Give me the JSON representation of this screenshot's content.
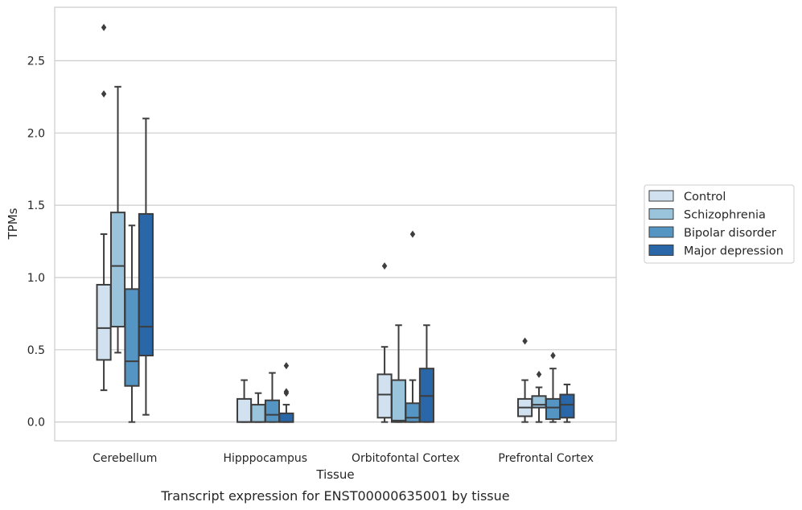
{
  "caption": "Transcript expression for ENST00000635001 by tissue",
  "chart_data": {
    "type": "boxplot",
    "title": "",
    "xlabel": "Tissue",
    "ylabel": "TPMs",
    "ylim": [
      -0.13,
      2.87
    ],
    "yticks": [
      "0.0",
      "0.5",
      "1.0",
      "1.5",
      "2.0",
      "2.5"
    ],
    "ytick_values": [
      0,
      0.5,
      1.0,
      1.5,
      2.0,
      2.5
    ],
    "grid": "horizontal",
    "legend_position": "right",
    "categories": [
      "Cerebellum",
      "Hipppocampus",
      "Orbitofontal Cortex",
      "Prefrontal Cortex"
    ],
    "series": [
      {
        "name": "Control",
        "color": "#d1e1f0",
        "boxes": [
          {
            "whislo": 0.22,
            "q1": 0.43,
            "med": 0.65,
            "q3": 0.95,
            "whishi": 1.3,
            "fliers": [
              2.73,
              2.27
            ]
          },
          {
            "whislo": 0.0,
            "q1": 0.0,
            "med": 0.0,
            "q3": 0.16,
            "whishi": 0.29,
            "fliers": []
          },
          {
            "whislo": 0.0,
            "q1": 0.03,
            "med": 0.19,
            "q3": 0.33,
            "whishi": 0.52,
            "fliers": [
              1.08
            ]
          },
          {
            "whislo": 0.0,
            "q1": 0.04,
            "med": 0.1,
            "q3": 0.16,
            "whishi": 0.29,
            "fliers": [
              0.56
            ]
          }
        ]
      },
      {
        "name": "Schizophrenia",
        "color": "#9ac4dc",
        "boxes": [
          {
            "whislo": 0.48,
            "q1": 0.66,
            "med": 1.08,
            "q3": 1.45,
            "whishi": 2.32,
            "fliers": []
          },
          {
            "whislo": 0.0,
            "q1": 0.0,
            "med": 0.0,
            "q3": 0.12,
            "whishi": 0.2,
            "fliers": []
          },
          {
            "whislo": 0.0,
            "q1": 0.0,
            "med": 0.01,
            "q3": 0.29,
            "whishi": 0.67,
            "fliers": []
          },
          {
            "whislo": 0.0,
            "q1": 0.1,
            "med": 0.12,
            "q3": 0.18,
            "whishi": 0.24,
            "fliers": [
              0.33
            ]
          }
        ]
      },
      {
        "name": "Bipolar disorder",
        "color": "#5595c4",
        "boxes": [
          {
            "whislo": 0.0,
            "q1": 0.25,
            "med": 0.42,
            "q3": 0.92,
            "whishi": 1.36,
            "fliers": []
          },
          {
            "whislo": 0.0,
            "q1": 0.0,
            "med": 0.05,
            "q3": 0.15,
            "whishi": 0.34,
            "fliers": []
          },
          {
            "whislo": 0.0,
            "q1": 0.0,
            "med": 0.03,
            "q3": 0.13,
            "whishi": 0.29,
            "fliers": [
              1.3
            ]
          },
          {
            "whislo": 0.0,
            "q1": 0.02,
            "med": 0.1,
            "q3": 0.16,
            "whishi": 0.37,
            "fliers": [
              0.46
            ]
          }
        ]
      },
      {
        "name": "Major depression",
        "color": "#2a67a8",
        "boxes": [
          {
            "whislo": 0.05,
            "q1": 0.46,
            "med": 0.66,
            "q3": 1.44,
            "whishi": 2.1,
            "fliers": []
          },
          {
            "whislo": 0.0,
            "q1": 0.0,
            "med": 0.0,
            "q3": 0.06,
            "whishi": 0.12,
            "fliers": [
              0.39,
              0.21,
              0.2
            ]
          },
          {
            "whislo": 0.0,
            "q1": 0.0,
            "med": 0.18,
            "q3": 0.37,
            "whishi": 0.67,
            "fliers": []
          },
          {
            "whislo": 0.0,
            "q1": 0.03,
            "med": 0.12,
            "q3": 0.19,
            "whishi": 0.26,
            "fliers": []
          }
        ]
      }
    ]
  }
}
